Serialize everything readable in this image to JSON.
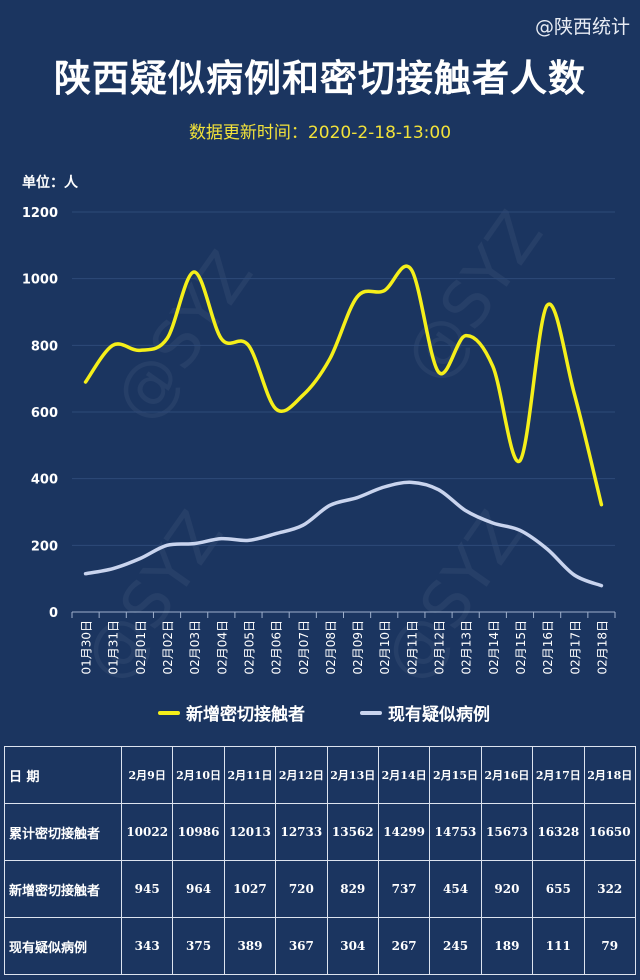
{
  "header": {
    "source": "@陕西统计",
    "title": "陕西疑似病例和密切接触者人数",
    "update_time": "数据更新时间：2020-2-18-13:00",
    "unit": "单位：人"
  },
  "colors": {
    "background": "#1b3560",
    "contacts_line": "#f5ef1a",
    "suspected_line": "#c9d4ee",
    "grid": "#2e4a78",
    "axis": "#9fb0cc"
  },
  "chart_data": {
    "type": "line",
    "x": [
      "01月30日",
      "01月31日",
      "02月01日",
      "02月02日",
      "02月03日",
      "02月04日",
      "02月05日",
      "02月06日",
      "02月07日",
      "02月08日",
      "02月09日",
      "02月10日",
      "02月11日",
      "02月12日",
      "02月13日",
      "02月14日",
      "02月15日",
      "02月16日",
      "02月17日",
      "02月18日"
    ],
    "ylim": [
      0,
      1200
    ],
    "yticks": [
      0,
      200,
      400,
      600,
      800,
      1000,
      1200
    ],
    "grid": true,
    "legend_position": "bottom",
    "series": [
      {
        "name": "新增密切接触者",
        "color": "#f5ef1a",
        "values": [
          690,
          800,
          785,
          820,
          1020,
          820,
          800,
          610,
          650,
          760,
          945,
          964,
          1027,
          720,
          829,
          737,
          454,
          920,
          655,
          322
        ]
      },
      {
        "name": "现有疑似病例",
        "color": "#c9d4ee",
        "values": [
          115,
          130,
          160,
          200,
          205,
          220,
          215,
          235,
          260,
          320,
          343,
          375,
          389,
          367,
          304,
          267,
          245,
          189,
          111,
          79
        ]
      }
    ]
  },
  "table": {
    "header_label": "日  期",
    "dates": [
      "2月9日",
      "2月10日",
      "2月11日",
      "2月12日",
      "2月13日",
      "2月14日",
      "2月15日",
      "2月16日",
      "2月17日",
      "2月18日"
    ],
    "rows": [
      {
        "label": "累计密切接触者",
        "values": [
          "10022",
          "10986",
          "12013",
          "12733",
          "13562",
          "14299",
          "14753",
          "15673",
          "16328",
          "16650"
        ]
      },
      {
        "label": "新增密切接触者",
        "values": [
          "945",
          "964",
          "1027",
          "720",
          "829",
          "737",
          "454",
          "920",
          "655",
          "322"
        ]
      },
      {
        "label": "现有疑似病例",
        "values": [
          "343",
          "375",
          "389",
          "367",
          "304",
          "267",
          "245",
          "189",
          "111",
          "79"
        ]
      }
    ]
  }
}
